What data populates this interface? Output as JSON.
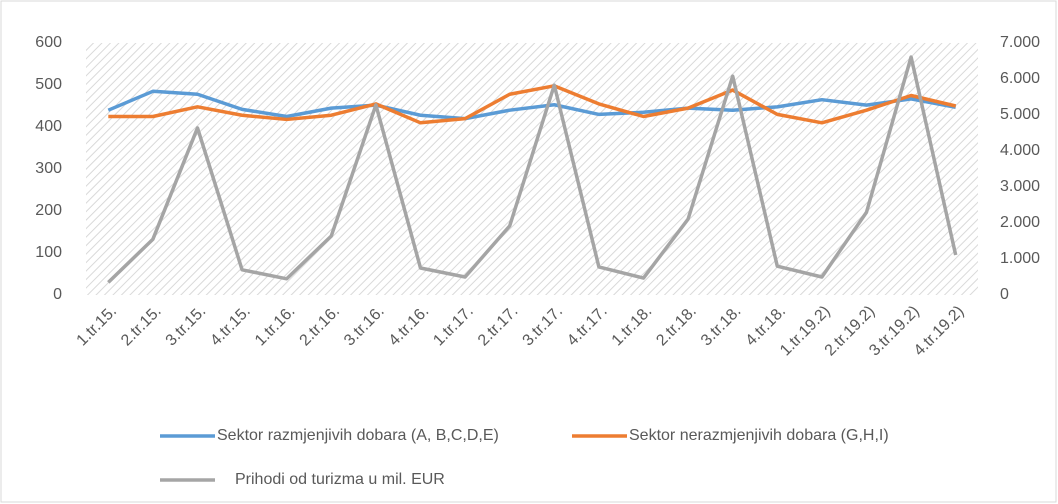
{
  "chart_data": {
    "type": "line",
    "categories": [
      "1.tr.15.",
      "2.tr.15.",
      "3.tr.15.",
      "4.tr.15.",
      "1.tr.16.",
      "2.tr.16.",
      "3.tr.16.",
      "4.tr.16.",
      "1.tr.17.",
      "2.tr.17.",
      "3.tr.17.",
      "4.tr.17.",
      "1.tr.18.",
      "2.tr.18.",
      "3.tr.18.",
      "4.tr.18.",
      "1.tr.19.2)",
      "2.tr.19.2)",
      "3.tr.19.2)",
      "4.tr.19.2)"
    ],
    "series": [
      {
        "name": "Sektor razmjenjivih dobara (A, B,C,D,E)",
        "color": "#5b9bd5",
        "values": [
          440,
          485,
          478,
          442,
          425,
          445,
          452,
          428,
          420,
          440,
          453,
          430,
          435,
          445,
          440,
          448,
          465,
          452,
          467,
          447
        ]
      },
      {
        "name": "Sektor nerazmjenjivih dobara (G,H,I)",
        "color": "#ed7d31",
        "values": [
          425,
          425,
          448,
          428,
          418,
          428,
          455,
          410,
          420,
          478,
          498,
          455,
          425,
          445,
          488,
          430,
          410,
          440,
          475,
          450
        ]
      },
      {
        "name": "Prihodi od turizma u mil. EUR",
        "color": "#a5a5a5",
        "axis": "y2",
        "values": [
          350,
          1550,
          4640,
          700,
          450,
          1640,
          5280,
          750,
          500,
          1920,
          5830,
          780,
          470,
          2110,
          6080,
          800,
          500,
          2300,
          6610,
          1110
        ]
      }
    ],
    "ylim": [
      0,
      600
    ],
    "yticks": [
      0,
      100,
      200,
      300,
      400,
      500,
      600
    ],
    "y2lim": [
      0,
      7000
    ],
    "y2ticks": [
      0,
      {
        "value": 1000,
        "label": "1.000"
      },
      {
        "value": 2000,
        "label": "2.000"
      },
      {
        "value": 3000,
        "label": "3.000"
      },
      {
        "value": 4000,
        "label": "4.000"
      },
      {
        "value": 5000,
        "label": "5.000"
      },
      {
        "value": 6000,
        "label": "6.000"
      },
      {
        "value": 7000,
        "label": "7.000"
      }
    ],
    "grid": false
  }
}
